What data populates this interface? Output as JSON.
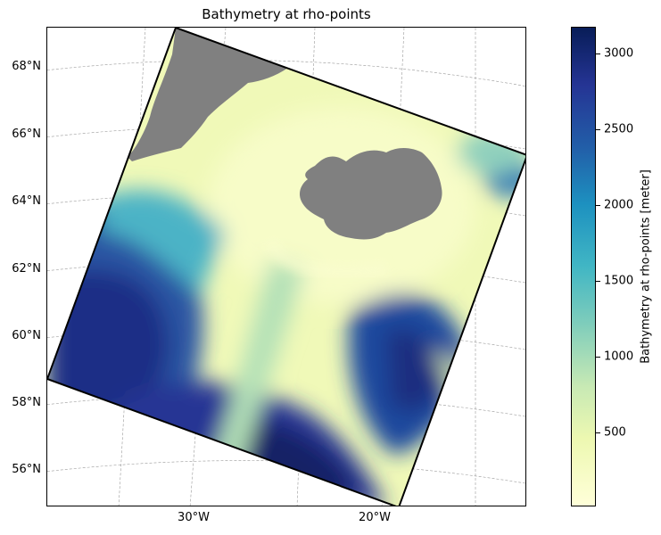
{
  "title": "Bathymetry at rho-points",
  "map": {
    "lat_labels": [
      "68°N",
      "66°N",
      "64°N",
      "62°N",
      "60°N",
      "58°N",
      "56°N"
    ],
    "lon_labels": [
      "30°W",
      "20°W"
    ],
    "land_color": "#808080",
    "colormap": "YlGnBu"
  },
  "colorbar": {
    "label": "Bathymetry at rho-points [meter]",
    "ticks": [
      "3000",
      "2500",
      "2000",
      "1500",
      "1000",
      "500"
    ],
    "range": [
      0,
      3200
    ]
  }
}
